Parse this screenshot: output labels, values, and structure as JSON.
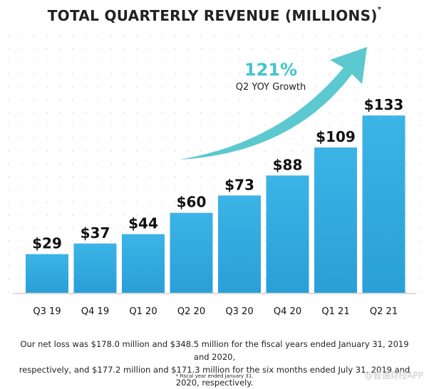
{
  "chart_data": {
    "type": "bar",
    "title": "TOTAL QUARTERLY REVENUE (MILLIONS)",
    "title_marker": "*",
    "categories": [
      "Q3 19",
      "Q4 19",
      "Q1 20",
      "Q2 20",
      "Q3 20",
      "Q4 20",
      "Q1 21",
      "Q2 21"
    ],
    "values": [
      29,
      37,
      44,
      60,
      73,
      88,
      109,
      133
    ],
    "data_labels": [
      "$29",
      "$37",
      "$44",
      "$60",
      "$73",
      "$88",
      "$109",
      "$133"
    ],
    "ylim": [
      0,
      140
    ],
    "grid": false,
    "bar_color_top": "#3cb4e6",
    "bar_color_bottom": "#2a9fd8",
    "arrow_color": "#5cc8cf"
  },
  "annotation": {
    "growth_pct": "121%",
    "growth_label": "Q2 YOY Growth"
  },
  "footnote": {
    "line1": "Our net loss was $178.0 million and $348.5 million for the fiscal years ended January 31, 2019 and 2020,",
    "line2": "respectively, and $177.2 million and $171.3 million for the six months ended July 31, 2019 and 2020, respectively.",
    "fiscal_note": "* Fiscal year ended January 31."
  },
  "watermark": "@智通财经APP"
}
